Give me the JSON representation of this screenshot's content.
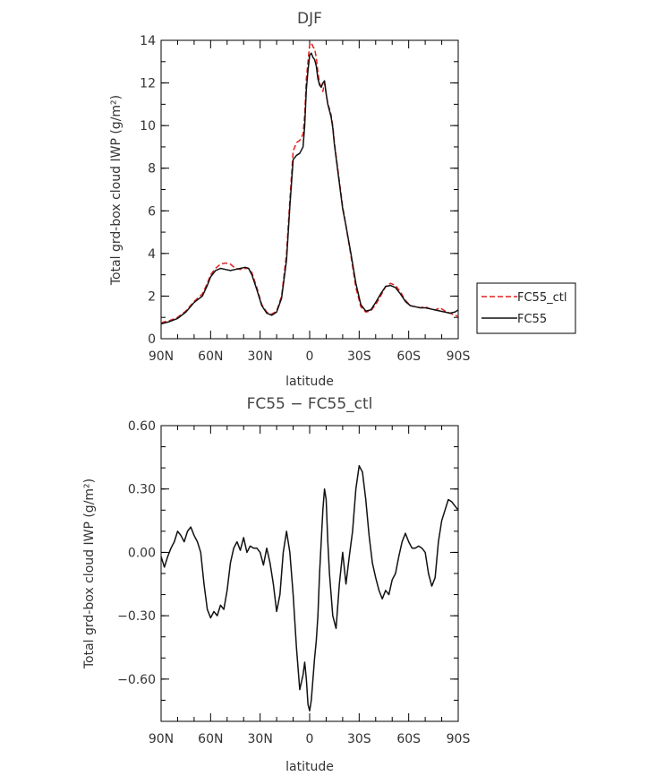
{
  "chart_data": [
    {
      "type": "line",
      "title": "DJF",
      "xlabel": "latitude",
      "ylabel": "Total grd-box cloud IWP (g/m²)",
      "xlim": [
        90,
        -90
      ],
      "ylim": [
        0,
        14
      ],
      "xticks": [
        90,
        60,
        30,
        0,
        -30,
        -60,
        -90
      ],
      "xtick_labels": [
        "90N",
        "60N",
        "30N",
        "0",
        "30S",
        "60S",
        "90S"
      ],
      "yticks": [
        0,
        2,
        4,
        6,
        8,
        10,
        12,
        14
      ],
      "ytick_labels": [
        "0",
        "2",
        "4",
        "6",
        "8",
        "10",
        "12",
        "14"
      ],
      "legend": "right",
      "grid": false,
      "series": [
        {
          "name": "FC55_ctl",
          "color": "#e02020",
          "dash": "dashed",
          "x": [
            90,
            85,
            80,
            75,
            70,
            65,
            62,
            60,
            57,
            54,
            51,
            48,
            45,
            42,
            39,
            37,
            35,
            32,
            29,
            26,
            23,
            20,
            17,
            14,
            12,
            10,
            8,
            6,
            4,
            3,
            2,
            1,
            0,
            -1,
            -2,
            -3,
            -4,
            -5,
            -6,
            -7,
            -8,
            -9,
            -10,
            -11,
            -12,
            -13,
            -14,
            -15,
            -16,
            -18,
            -20,
            -22,
            -25,
            -28,
            -31,
            -34,
            -37,
            -40,
            -43,
            -46,
            -49,
            -52,
            -55,
            -58,
            -61,
            -64,
            -67,
            -70,
            -73,
            -76,
            -79,
            -82,
            -85,
            -88,
            -90
          ],
          "y": [
            0.75,
            0.85,
            1.0,
            1.3,
            1.75,
            2.1,
            2.6,
            3.0,
            3.3,
            3.5,
            3.55,
            3.5,
            3.3,
            3.25,
            3.3,
            3.3,
            3.1,
            2.4,
            1.6,
            1.25,
            1.15,
            1.3,
            2.0,
            4.0,
            6.5,
            8.8,
            9.2,
            9.3,
            9.6,
            10.5,
            12.2,
            13.0,
            13.8,
            13.9,
            13.7,
            13.6,
            13.2,
            12.5,
            12.0,
            11.8,
            11.6,
            12.0,
            11.5,
            11.0,
            10.8,
            10.5,
            10.0,
            9.2,
            8.6,
            7.4,
            6.2,
            5.3,
            3.9,
            2.4,
            1.5,
            1.25,
            1.3,
            1.6,
            2.0,
            2.45,
            2.6,
            2.5,
            2.2,
            1.8,
            1.55,
            1.5,
            1.45,
            1.5,
            1.4,
            1.35,
            1.45,
            1.3,
            1.2,
            1.1,
            1.05
          ]
        },
        {
          "name": "FC55",
          "color": "#111111",
          "dash": "solid",
          "x": [
            90,
            85,
            80,
            75,
            70,
            65,
            62,
            60,
            57,
            54,
            51,
            48,
            45,
            42,
            39,
            37,
            35,
            32,
            29,
            26,
            23,
            20,
            17,
            14,
            12,
            10,
            8,
            6,
            4,
            3,
            2,
            1,
            0,
            -1,
            -2,
            -3,
            -4,
            -5,
            -6,
            -7,
            -8,
            -9,
            -10,
            -11,
            -12,
            -13,
            -14,
            -15,
            -16,
            -18,
            -20,
            -22,
            -25,
            -28,
            -31,
            -34,
            -37,
            -40,
            -43,
            -46,
            -49,
            -52,
            -55,
            -58,
            -61,
            -64,
            -67,
            -70,
            -73,
            -76,
            -79,
            -82,
            -85,
            -88,
            -90
          ],
          "y": [
            0.7,
            0.8,
            0.95,
            1.25,
            1.7,
            2.0,
            2.5,
            2.9,
            3.2,
            3.3,
            3.25,
            3.2,
            3.25,
            3.3,
            3.35,
            3.3,
            3.0,
            2.3,
            1.55,
            1.2,
            1.1,
            1.25,
            1.9,
            3.7,
            6.2,
            8.4,
            8.6,
            8.7,
            9.0,
            10.0,
            11.7,
            12.6,
            13.3,
            13.4,
            13.2,
            13.1,
            12.8,
            12.2,
            11.9,
            11.8,
            12.0,
            12.1,
            11.5,
            11.0,
            10.7,
            10.4,
            9.9,
            9.1,
            8.5,
            7.3,
            6.1,
            5.3,
            4.0,
            2.6,
            1.6,
            1.3,
            1.35,
            1.7,
            2.1,
            2.45,
            2.5,
            2.4,
            2.1,
            1.75,
            1.55,
            1.5,
            1.45,
            1.45,
            1.4,
            1.35,
            1.3,
            1.25,
            1.2,
            1.25,
            1.35
          ]
        }
      ]
    },
    {
      "type": "line",
      "title": "FC55 − FC55_ctl",
      "xlabel": "latitude",
      "ylabel": "Total grd-box cloud IWP (g/m²)",
      "xlim": [
        90,
        -90
      ],
      "ylim": [
        -0.8,
        0.6
      ],
      "xticks": [
        90,
        60,
        30,
        0,
        -30,
        -60,
        -90
      ],
      "xtick_labels": [
        "90N",
        "60N",
        "30N",
        "0",
        "30S",
        "60S",
        "90S"
      ],
      "yticks": [
        -0.6,
        -0.3,
        0,
        0.3,
        0.6
      ],
      "ytick_labels": [
        "−0.60",
        "−0.30",
        "0.00",
        "0.30",
        "0.60"
      ],
      "grid": false,
      "series": [
        {
          "color": "#111111",
          "dash": "solid",
          "x": [
            90,
            88,
            86,
            84,
            82,
            80,
            78,
            76,
            74,
            72,
            70,
            68,
            66,
            64,
            62,
            60,
            58,
            56,
            54,
            52,
            50,
            48,
            46,
            44,
            42,
            40,
            38,
            36,
            34,
            32,
            30,
            28,
            26,
            24,
            22,
            20,
            18,
            16,
            14,
            12,
            10,
            8,
            6,
            4,
            3,
            2,
            1,
            0,
            -1,
            -2,
            -3,
            -4,
            -5,
            -6,
            -7,
            -8,
            -9,
            -10,
            -11,
            -12,
            -13,
            -14,
            -16,
            -18,
            -20,
            -22,
            -24,
            -26,
            -28,
            -30,
            -32,
            -34,
            -36,
            -38,
            -40,
            -42,
            -44,
            -46,
            -48,
            -50,
            -52,
            -54,
            -56,
            -58,
            -60,
            -62,
            -64,
            -66,
            -68,
            -70,
            -72,
            -74,
            -76,
            -78,
            -80,
            -82,
            -84,
            -86,
            -88,
            -90
          ],
          "y": [
            -0.02,
            -0.07,
            -0.02,
            0.02,
            0.05,
            0.1,
            0.08,
            0.05,
            0.1,
            0.12,
            0.08,
            0.05,
            0.0,
            -0.15,
            -0.27,
            -0.31,
            -0.28,
            -0.3,
            -0.25,
            -0.27,
            -0.18,
            -0.05,
            0.02,
            0.05,
            0.01,
            0.07,
            0.0,
            0.03,
            0.02,
            0.02,
            0.0,
            -0.06,
            0.02,
            -0.05,
            -0.15,
            -0.28,
            -0.2,
            0.0,
            0.1,
            0.0,
            -0.2,
            -0.45,
            -0.65,
            -0.58,
            -0.52,
            -0.6,
            -0.72,
            -0.75,
            -0.7,
            -0.6,
            -0.5,
            -0.42,
            -0.3,
            -0.1,
            0.05,
            0.2,
            0.3,
            0.25,
            0.05,
            -0.1,
            -0.2,
            -0.3,
            -0.36,
            -0.15,
            0.0,
            -0.15,
            -0.02,
            0.1,
            0.3,
            0.41,
            0.38,
            0.25,
            0.08,
            -0.05,
            -0.12,
            -0.18,
            -0.22,
            -0.18,
            -0.2,
            -0.13,
            -0.1,
            -0.02,
            0.05,
            0.09,
            0.05,
            0.02,
            0.02,
            0.03,
            0.02,
            0.0,
            -0.1,
            -0.16,
            -0.12,
            0.05,
            0.15,
            0.2,
            0.25,
            0.24,
            0.22,
            0.2
          ]
        }
      ]
    }
  ]
}
